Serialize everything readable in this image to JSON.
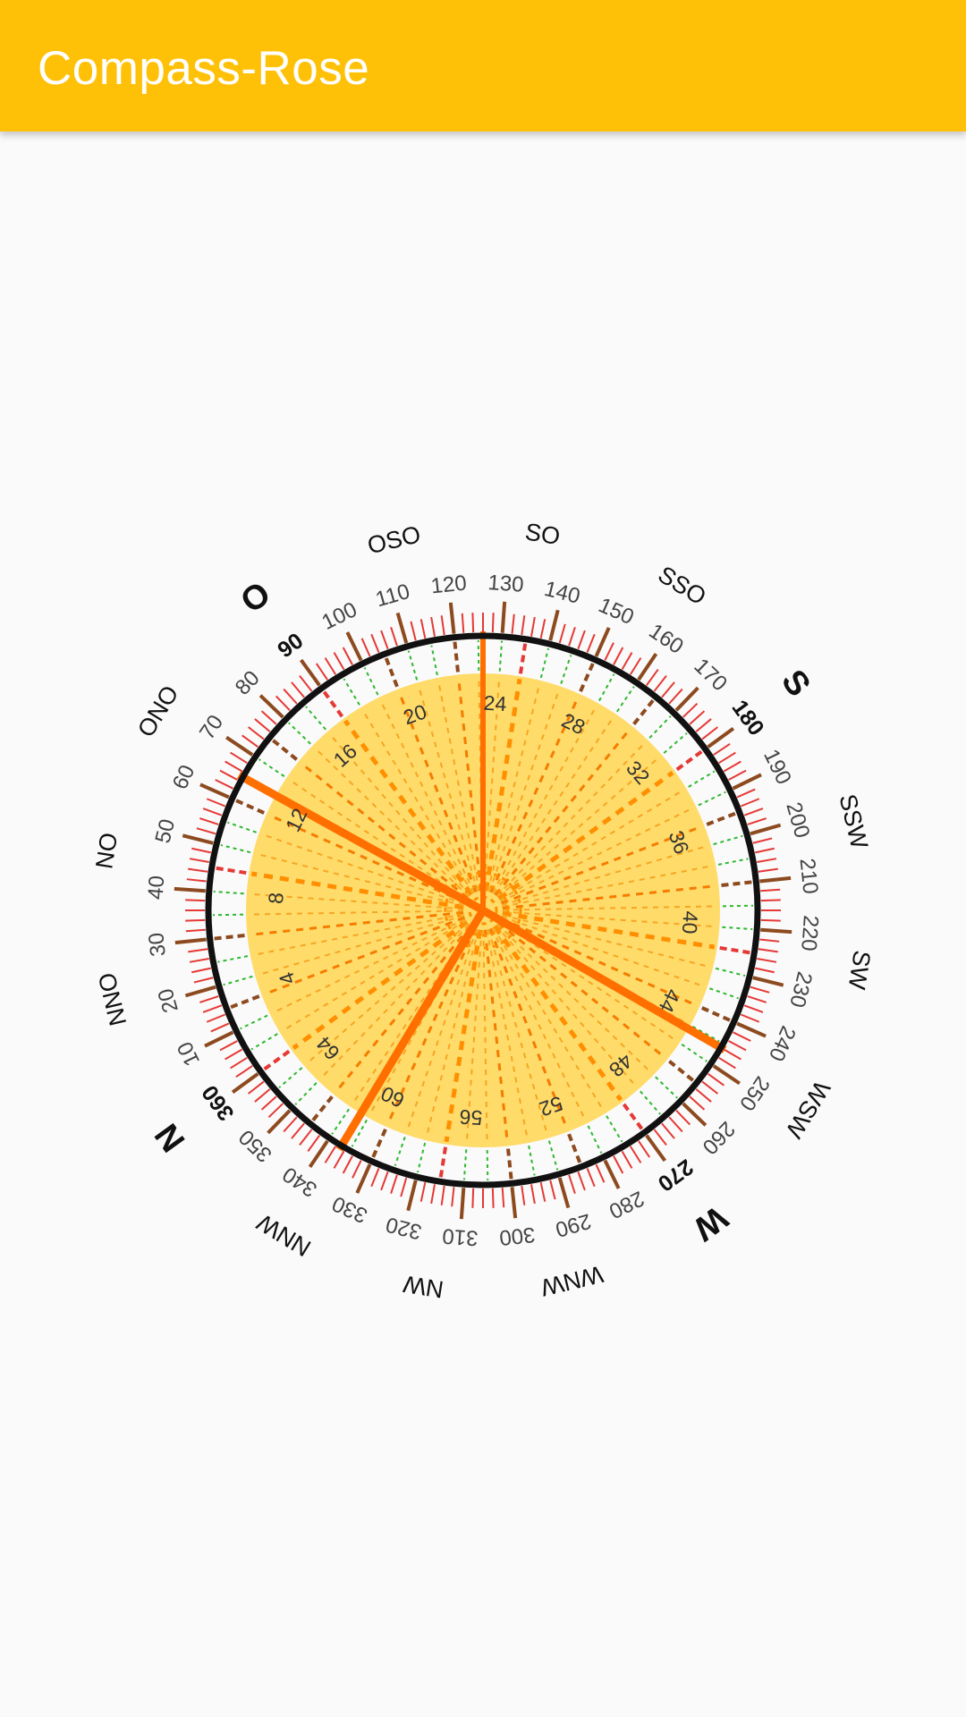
{
  "app": {
    "title": "Compass-Rose"
  },
  "compass": {
    "degree_labels": [
      "10",
      "20",
      "30",
      "40",
      "50",
      "60",
      "70",
      "80",
      "90",
      "100",
      "110",
      "120",
      "130",
      "140",
      "150",
      "160",
      "170",
      "180",
      "190",
      "200",
      "210",
      "220",
      "230",
      "240",
      "250",
      "260",
      "270",
      "280",
      "290",
      "300",
      "310",
      "320",
      "330",
      "340",
      "350",
      "360"
    ],
    "major_degree_labels": [
      "90",
      "180",
      "270",
      "360"
    ],
    "direction_labels": [
      "N",
      "NNO",
      "NO",
      "ONO",
      "O",
      "OSO",
      "SO",
      "SSO",
      "S",
      "SSW",
      "SW",
      "WSW",
      "W",
      "WNW",
      "NW",
      "NNW"
    ],
    "inner_labels": [
      "4",
      "8",
      "12",
      "16",
      "20",
      "24",
      "28",
      "32",
      "36",
      "40",
      "44",
      "48",
      "52",
      "56",
      "60",
      "64"
    ],
    "colors": {
      "app_bar": "#ffc107",
      "inner_disc": "#ffd54f",
      "ring": "#111111",
      "tick_red": "#e53935",
      "tick_brown": "#8d4a1f",
      "pointer": "#ff6f00",
      "green": "#2eb82e"
    }
  }
}
